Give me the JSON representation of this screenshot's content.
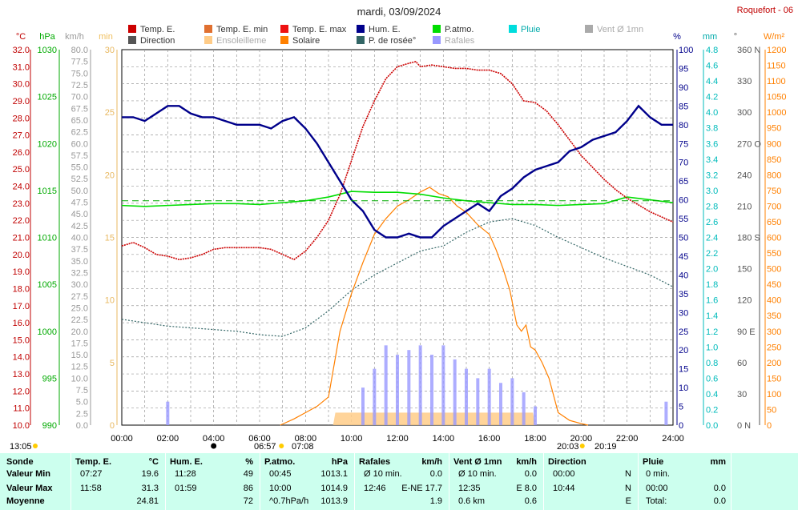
{
  "title": "mardi, 03/09/2024",
  "station": "Roquefort - 06",
  "legend": [
    {
      "label": "Temp. E.",
      "color": "#cc0000"
    },
    {
      "label": "Temp. E. min",
      "color": "#e07030"
    },
    {
      "label": "Temp. E. max",
      "color": "#ee1111"
    },
    {
      "label": "Hum. E.",
      "color": "#00008b"
    },
    {
      "label": "P.atmo.",
      "color": "#00dd00"
    },
    {
      "label": "Pluie",
      "color": "#00dddd"
    },
    {
      "label": "Vent Ø 1mn",
      "color": "#aaaaaa"
    },
    {
      "label": "Direction",
      "color": "#555555"
    },
    {
      "label": "Ensoleilleme",
      "color": "#ffcc88"
    },
    {
      "label": "Solaire",
      "color": "#ff8000"
    },
    {
      "label": "P. de rosée°",
      "color": "#336666"
    },
    {
      "label": "Rafales",
      "color": "#9999ff"
    }
  ],
  "axis_units": {
    "temp": "°C",
    "pressure": "hPa",
    "wind": "km/h",
    "sunshine": "min",
    "humidity": "%",
    "rain": "mm",
    "direction": "°",
    "solar": "W/m²"
  },
  "axes": {
    "temp_ticks": [
      "32.0",
      "31.0",
      "30.0",
      "29.0",
      "28.0",
      "27.0",
      "26.0",
      "25.0",
      "24.0",
      "23.0",
      "22.0",
      "21.0",
      "20.0",
      "19.0",
      "18.0",
      "17.0",
      "16.0",
      "15.0",
      "14.0",
      "13.0",
      "12.0",
      "11.0",
      "10.0"
    ],
    "pressure_ticks": [
      "1030",
      "1025",
      "1020",
      "1015",
      "1010",
      "1005",
      "1000",
      "995",
      "990"
    ],
    "wind_ticks": [
      "80.0",
      "77.5",
      "75.0",
      "72.5",
      "70.0",
      "67.5",
      "65.0",
      "62.5",
      "60.0",
      "57.5",
      "55.0",
      "52.5",
      "50.0",
      "47.5",
      "45.0",
      "42.5",
      "40.0",
      "37.5",
      "35.0",
      "32.5",
      "30.0",
      "27.5",
      "25.0",
      "22.5",
      "20.0",
      "17.5",
      "15.0",
      "12.5",
      "10.0",
      "7.5",
      "5.0",
      "2.5",
      "0.0"
    ],
    "sunshine_ticks": [
      "30",
      "25",
      "20",
      "15",
      "10",
      "5",
      "0"
    ],
    "humidity_ticks": [
      "100",
      "95",
      "90",
      "85",
      "80",
      "75",
      "70",
      "65",
      "60",
      "55",
      "50",
      "45",
      "40",
      "35",
      "30",
      "25",
      "20",
      "15",
      "10",
      "5",
      "0"
    ],
    "rain_ticks": [
      "4.8",
      "4.6",
      "4.4",
      "4.2",
      "4.0",
      "3.8",
      "3.6",
      "3.4",
      "3.2",
      "3.0",
      "2.8",
      "2.6",
      "2.4",
      "2.2",
      "2.0",
      "1.8",
      "1.6",
      "1.4",
      "1.2",
      "1.0",
      "0.8",
      "0.6",
      "0.4",
      "0.2",
      "0.0"
    ],
    "direction_ticks": [
      "360 N",
      "330",
      "300",
      "270 O",
      "240",
      "210",
      "180 S",
      "150",
      "120",
      "90 E",
      "60",
      "30",
      "0 N"
    ],
    "solar_ticks": [
      "1200",
      "1150",
      "1100",
      "1050",
      "1000",
      "950",
      "900",
      "850",
      "800",
      "750",
      "700",
      "650",
      "600",
      "550",
      "500",
      "450",
      "400",
      "350",
      "300",
      "250",
      "200",
      "150",
      "100",
      "50",
      "0"
    ],
    "x_ticks": [
      "00:00",
      "02:00",
      "04:00",
      "06:00",
      "08:00",
      "10:00",
      "12:00",
      "14:00",
      "16:00",
      "18:00",
      "20:00",
      "22:00",
      "24:00"
    ]
  },
  "time_markers": {
    "left": "13:05",
    "sunrise": "06:57",
    "sunrise2": "07:08",
    "sunset": "20:03",
    "sunset2": "20:19"
  },
  "chart_data": {
    "type": "line",
    "x_unit": "hours",
    "series": [
      {
        "name": "Temp. E.",
        "unit": "°C",
        "x": [
          0,
          0.5,
          1,
          1.5,
          2,
          2.5,
          3,
          3.5,
          4,
          4.5,
          5,
          5.5,
          6,
          6.5,
          7,
          7.5,
          8,
          8.5,
          9,
          9.5,
          10,
          10.5,
          11,
          11.5,
          12,
          12.5,
          12.8,
          13,
          13.5,
          14,
          14.5,
          15,
          15.5,
          16,
          16.5,
          17,
          17.5,
          18,
          18.5,
          19,
          19.5,
          20,
          20.5,
          21,
          21.5,
          22,
          22.5,
          23,
          23.5,
          24
        ],
        "y": [
          20.5,
          20.7,
          20.4,
          20.0,
          19.9,
          19.7,
          19.8,
          20.0,
          20.3,
          20.4,
          20.4,
          20.4,
          20.4,
          20.3,
          20.0,
          19.7,
          20.2,
          21.0,
          22.0,
          23.5,
          25.5,
          27.5,
          29.0,
          30.3,
          31.0,
          31.2,
          31.3,
          31.0,
          31.1,
          31.0,
          30.9,
          30.9,
          30.8,
          30.8,
          30.6,
          30.0,
          29.0,
          28.9,
          28.4,
          27.6,
          26.7,
          25.8,
          25.1,
          24.4,
          23.8,
          23.3,
          22.9,
          22.5,
          22.2,
          21.9
        ]
      },
      {
        "name": "Hum. E.",
        "unit": "%",
        "x": [
          0,
          0.5,
          1,
          1.5,
          2,
          2.5,
          3,
          3.5,
          4,
          4.5,
          5,
          5.5,
          6,
          6.5,
          7,
          7.5,
          8,
          8.5,
          9,
          9.5,
          10,
          10.5,
          11,
          11.5,
          12,
          12.5,
          13,
          13.5,
          14,
          14.5,
          15,
          15.5,
          16,
          16.5,
          17,
          17.5,
          18,
          18.5,
          19,
          19.5,
          20,
          20.5,
          21,
          21.5,
          22,
          22.5,
          23,
          23.5,
          24
        ],
        "y": [
          82,
          82,
          81,
          83,
          85,
          85,
          83,
          82,
          82,
          81,
          80,
          80,
          80,
          79,
          81,
          82,
          79,
          75,
          70,
          65,
          60,
          57,
          52,
          50,
          50,
          51,
          50,
          50,
          53,
          55,
          57,
          59,
          57,
          61,
          63,
          66,
          68,
          69,
          70,
          73,
          74,
          76,
          77,
          78,
          81,
          85,
          82,
          80,
          80
        ]
      },
      {
        "name": "P.atmo.",
        "unit": "hPa",
        "x": [
          0,
          1,
          2,
          3,
          4,
          5,
          6,
          7,
          8,
          9,
          10,
          11,
          12,
          13,
          14,
          15,
          16,
          17,
          18,
          19,
          20,
          21,
          22,
          23,
          24
        ],
        "y": [
          1013.4,
          1013.3,
          1013.4,
          1013.5,
          1013.6,
          1013.6,
          1013.5,
          1013.7,
          1013.9,
          1014.3,
          1014.9,
          1014.8,
          1014.8,
          1014.6,
          1014.2,
          1013.9,
          1013.7,
          1013.5,
          1013.5,
          1013.4,
          1013.5,
          1013.6,
          1014.3,
          1014.0,
          1013.7
        ]
      },
      {
        "name": "P. de rosée°",
        "unit": "°C",
        "x": [
          0,
          1,
          2,
          3,
          4,
          5,
          6,
          7,
          8,
          9,
          10,
          11,
          12,
          13,
          14,
          15,
          16,
          17,
          18,
          19,
          20,
          21,
          22,
          23,
          24
        ],
        "y": [
          16.2,
          16.0,
          15.8,
          15.7,
          15.6,
          15.5,
          15.3,
          15.2,
          15.7,
          16.7,
          17.9,
          18.8,
          19.5,
          20.2,
          20.5,
          21.3,
          21.9,
          22.1,
          21.7,
          21.0,
          20.4,
          19.8,
          19.3,
          18.8,
          18.1
        ]
      },
      {
        "name": "Solaire",
        "unit": "W/m²",
        "x": [
          6.9,
          7.5,
          8,
          8.5,
          9,
          9.5,
          10,
          10.5,
          11,
          11.5,
          12,
          12.5,
          13,
          13.4,
          13.8,
          14.2,
          14.6,
          15,
          15.5,
          16,
          16.3,
          16.6,
          16.9,
          17.2,
          17.4,
          17.6,
          17.8,
          18,
          18.3,
          18.6,
          19,
          19.5,
          20,
          20.3
        ],
        "y": [
          0,
          20,
          40,
          60,
          90,
          300,
          420,
          520,
          610,
          660,
          700,
          720,
          745,
          760,
          740,
          730,
          700,
          680,
          640,
          610,
          560,
          500,
          430,
          320,
          300,
          320,
          250,
          240,
          200,
          150,
          40,
          15,
          5,
          0
        ]
      },
      {
        "name": "Rafales",
        "unit": "km/h",
        "x": [
          0,
          1.8,
          2,
          2.2,
          10.5,
          11,
          11.5,
          12,
          12.5,
          13,
          13.5,
          14,
          14.5,
          15,
          15.5,
          16,
          16.5,
          17,
          17.5,
          18,
          23.5,
          23.7
        ],
        "y": [
          0,
          0,
          5,
          0,
          8,
          12,
          17,
          15,
          16,
          17,
          15,
          17,
          14,
          12,
          10,
          12,
          9,
          10,
          7,
          4,
          0,
          5
        ]
      },
      {
        "name": "Ensoleilleme",
        "unit": "min",
        "x": [
          0,
          9.2,
          9.3,
          17.9,
          18.0,
          24
        ],
        "y": [
          0,
          0,
          1.0,
          1.0,
          0,
          0
        ]
      }
    ]
  },
  "table": {
    "headers": [
      "Sonde",
      "Temp. E.",
      "°C",
      "Hum. E.",
      "%",
      "P.atmo.",
      "hPa",
      "Rafales",
      "km/h",
      "Vent Ø 1mn",
      "km/h",
      "Direction",
      "Pluie",
      "mm"
    ],
    "row_labels": [
      "Valeur Min",
      "Valeur Max",
      "Moyenne"
    ],
    "temp": [
      [
        "07:27",
        "19.6"
      ],
      [
        "11:58",
        "31.3"
      ],
      [
        "",
        "24.81"
      ]
    ],
    "hum": [
      [
        "11:28",
        "49"
      ],
      [
        "01:59",
        "86"
      ],
      [
        "",
        "72"
      ]
    ],
    "patmo": [
      [
        "00:45",
        "1013.1"
      ],
      [
        "10:00",
        "1014.9"
      ],
      [
        "^0.7hPa/h",
        "1013.9"
      ]
    ],
    "rafales": [
      [
        "Ø 10 min.",
        "0.0"
      ],
      [
        "12:46",
        "E-NE 17.7"
      ],
      [
        "",
        "1.9"
      ]
    ],
    "vent": [
      [
        "Ø 10 min.",
        "0.0"
      ],
      [
        "12:35",
        "E 8.0"
      ],
      [
        "0.6 km",
        "0.6"
      ]
    ],
    "direction": [
      [
        "00:00",
        "N"
      ],
      [
        "10:44",
        "N"
      ],
      [
        "",
        "E"
      ]
    ],
    "pluie": [
      [
        "0 min.",
        ""
      ],
      [
        "00:00",
        "0.0"
      ],
      [
        "Total:",
        "0.0"
      ]
    ]
  }
}
